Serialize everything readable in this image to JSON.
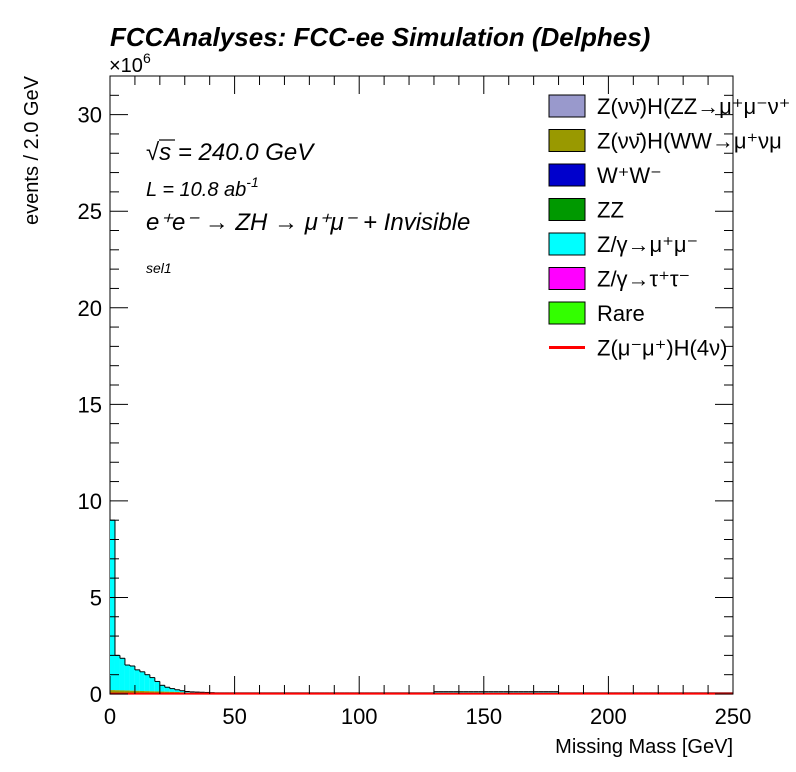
{
  "chart_data": {
    "type": "bar",
    "title": "FCCAnalyses: FCC-ee Simulation (Delphes)",
    "xlabel": "Missing Mass [GeV]",
    "ylabel": "events / 2.0 GeV",
    "y_multiplier": "×10",
    "y_multiplier_exp": "6",
    "xlim": [
      0,
      250
    ],
    "ylim": [
      0,
      32
    ],
    "bin_width": 2,
    "x_ticks": [
      "0",
      "50",
      "100",
      "150",
      "200",
      "250"
    ],
    "y_ticks": [
      "0",
      "5",
      "10",
      "15",
      "20",
      "25",
      "30"
    ],
    "annotations": {
      "sqrt_s": "s",
      "energy": " = 240.0 GeV",
      "lumi_prefix": "L = 10.8 ab",
      "lumi_exp": "-1",
      "process": "e⁺e⁻ → ZH → μ⁺μ⁻ + Invisible",
      "selection": "sel1"
    },
    "legend": [
      {
        "label": "Z(νν̄)H(ZZ→μ⁺μ⁻ν⁺",
        "color": "#9999cc",
        "style": "box"
      },
      {
        "label": "Z(νν̄)H(WW→μ⁺νμ",
        "color": "#999900",
        "style": "box"
      },
      {
        "label": "W⁺W⁻",
        "color": "#0000cc",
        "style": "box"
      },
      {
        "label": "ZZ",
        "color": "#009900",
        "style": "box"
      },
      {
        "label": "Z/γ→μ⁺μ⁻",
        "color": "#00ffff",
        "style": "box"
      },
      {
        "label": "Z/γ→τ⁺τ⁻",
        "color": "#ff00ff",
        "style": "box"
      },
      {
        "label": "Rare",
        "color": "#33ff00",
        "style": "box"
      },
      {
        "label": "Z(μ⁻μ⁺)H(4ν)",
        "color": "#ff0000",
        "style": "line"
      }
    ],
    "stack_total_bins": [
      {
        "x": 0,
        "y": 9.0
      },
      {
        "x": 2,
        "y": 2.0
      },
      {
        "x": 4,
        "y": 1.85
      },
      {
        "x": 6,
        "y": 1.5
      },
      {
        "x": 8,
        "y": 1.45
      },
      {
        "x": 10,
        "y": 1.25
      },
      {
        "x": 12,
        "y": 1.15
      },
      {
        "x": 14,
        "y": 1.0
      },
      {
        "x": 16,
        "y": 0.85
      },
      {
        "x": 18,
        "y": 0.65
      },
      {
        "x": 20,
        "y": 0.45
      },
      {
        "x": 22,
        "y": 0.35
      },
      {
        "x": 24,
        "y": 0.28
      },
      {
        "x": 26,
        "y": 0.22
      },
      {
        "x": 28,
        "y": 0.17
      },
      {
        "x": 30,
        "y": 0.13
      },
      {
        "x": 32,
        "y": 0.11
      },
      {
        "x": 34,
        "y": 0.1
      },
      {
        "x": 36,
        "y": 0.09
      },
      {
        "x": 38,
        "y": 0.08
      },
      {
        "x": 40,
        "y": 0.07
      }
    ],
    "tail_level": 0.06,
    "bump_range": [
      130,
      180
    ],
    "bump_level": 0.12,
    "bottom_layers": {
      "ww_level": 0.2,
      "ww_fade_to": 0.05,
      "ww_fade_end": 40
    },
    "signal_level": 0.02
  }
}
